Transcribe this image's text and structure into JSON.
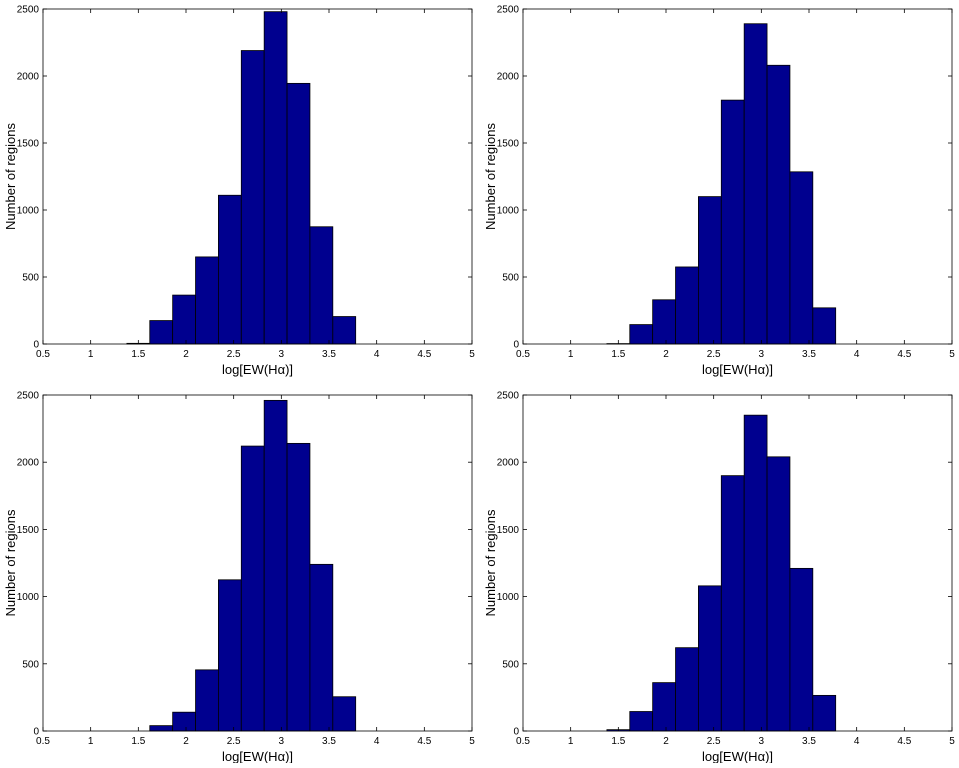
{
  "chart_data": [
    {
      "type": "bar",
      "title": "",
      "xlabel": "log[EW(Hα)]",
      "ylabel": "Number of regions",
      "xlim": [
        0.5,
        5
      ],
      "ylim": [
        0,
        2500
      ],
      "xticks": [
        "0.5",
        "1",
        "1.5",
        "2",
        "2.5",
        "3",
        "3.5",
        "4",
        "4.5",
        "5"
      ],
      "yticks": [
        "0",
        "500",
        "1000",
        "1500",
        "2000",
        "2500"
      ],
      "bin_edges": [
        1.38,
        1.62,
        1.86,
        2.1,
        2.34,
        2.58,
        2.82,
        3.06,
        3.3,
        3.54,
        3.78
      ],
      "values": [
        5,
        175,
        365,
        650,
        1110,
        2190,
        2480,
        1945,
        875,
        205
      ],
      "bar_color": "#00008F"
    },
    {
      "type": "bar",
      "title": "",
      "xlabel": "log[EW(Hα)]",
      "ylabel": "Number of regions",
      "xlim": [
        0.5,
        5
      ],
      "ylim": [
        0,
        2500
      ],
      "xticks": [
        "0.5",
        "1",
        "1.5",
        "2",
        "2.5",
        "3",
        "3.5",
        "4",
        "4.5",
        "5"
      ],
      "yticks": [
        "0",
        "500",
        "1000",
        "1500",
        "2000",
        "2500"
      ],
      "bin_edges": [
        1.38,
        1.62,
        1.86,
        2.1,
        2.34,
        2.58,
        2.82,
        3.06,
        3.3,
        3.54,
        3.78
      ],
      "values": [
        3,
        145,
        330,
        575,
        1100,
        1820,
        2390,
        2080,
        1285,
        270
      ],
      "bar_color": "#00008F"
    },
    {
      "type": "bar",
      "title": "",
      "xlabel": "log[EW(Hα)]",
      "ylabel": "Number of regions",
      "xlim": [
        0.5,
        5
      ],
      "ylim": [
        0,
        2500
      ],
      "xticks": [
        "0.5",
        "1",
        "1.5",
        "2",
        "2.5",
        "3",
        "3.5",
        "4",
        "4.5",
        "5"
      ],
      "yticks": [
        "0",
        "500",
        "1000",
        "1500",
        "2000",
        "2500"
      ],
      "bin_edges": [
        1.38,
        1.62,
        1.86,
        2.1,
        2.34,
        2.58,
        2.82,
        3.06,
        3.3,
        3.54,
        3.78
      ],
      "values": [
        0,
        40,
        140,
        455,
        1125,
        2120,
        2460,
        2140,
        1240,
        255
      ],
      "bar_color": "#00008F"
    },
    {
      "type": "bar",
      "title": "",
      "xlabel": "log[EW(Hα)]",
      "ylabel": "Number of regions",
      "xlim": [
        0.5,
        5
      ],
      "ylim": [
        0,
        2500
      ],
      "xticks": [
        "0.5",
        "1",
        "1.5",
        "2",
        "2.5",
        "3",
        "3.5",
        "4",
        "4.5",
        "5"
      ],
      "yticks": [
        "0",
        "500",
        "1000",
        "1500",
        "2000",
        "2500"
      ],
      "bin_edges": [
        1.38,
        1.62,
        1.86,
        2.1,
        2.34,
        2.58,
        2.82,
        3.06,
        3.3,
        3.54,
        3.78
      ],
      "values": [
        10,
        145,
        360,
        620,
        1080,
        1900,
        2350,
        2040,
        1210,
        265
      ],
      "bar_color": "#00008F"
    }
  ]
}
